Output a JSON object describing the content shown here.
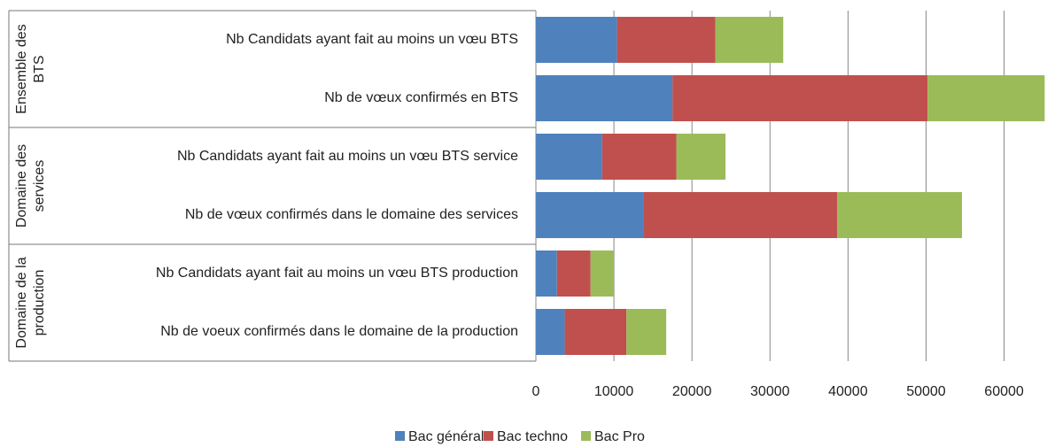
{
  "chart_data": {
    "type": "bar",
    "orientation": "horizontal",
    "stacked": true,
    "groups": [
      {
        "lines": [
          "Ensemble des",
          "BTS"
        ]
      },
      {
        "lines": [
          "Domaine des",
          "services"
        ]
      },
      {
        "lines": [
          "Domaine de la",
          "production"
        ]
      }
    ],
    "categories": [
      "Nb Candidats ayant fait au moins un vœu BTS",
      "Nb de vœux confirmés en BTS",
      "Nb Candidats ayant fait au moins un vœu BTS service",
      "Nb de vœux confirmés dans le domaine des services",
      "Nb Candidats ayant fait au moins  un vœu BTS production",
      "Nb de voeux confirmés dans le domaine de la production"
    ],
    "series": [
      {
        "name": "Bac général",
        "color": "#4f81bd",
        "values": [
          10400,
          17500,
          8500,
          13800,
          2700,
          3700
        ]
      },
      {
        "name": "Bac techno",
        "color": "#c0504d",
        "values": [
          12600,
          32700,
          9500,
          24800,
          4300,
          7900
        ]
      },
      {
        "name": "Bac Pro",
        "color": "#9bbb59",
        "values": [
          8700,
          15000,
          6300,
          16000,
          3000,
          5100
        ]
      }
    ],
    "xlim": [
      0,
      65500
    ],
    "xticks": [
      0,
      10000,
      20000,
      30000,
      40000,
      50000,
      60000
    ],
    "grid": true,
    "legend": "bottom"
  }
}
